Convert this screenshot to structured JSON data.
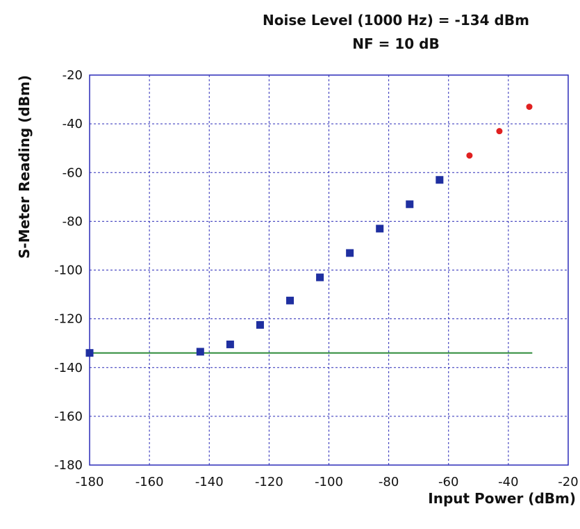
{
  "chart_data": {
    "type": "scatter",
    "title_lines": [
      "Noise Level (1000 Hz) = -134 dBm",
      "NF = 10 dB"
    ],
    "xlabel": "Input Power (dBm)",
    "ylabel": "S-Meter Reading (dBm)",
    "xlim": [
      -180,
      -20
    ],
    "ylim": [
      -180,
      -20
    ],
    "xticks": [
      -180,
      -160,
      -140,
      -120,
      -100,
      -80,
      -60,
      -40,
      -20
    ],
    "yticks": [
      -20,
      -40,
      -60,
      -80,
      -100,
      -120,
      -140,
      -160,
      -180
    ],
    "grid": true,
    "series": [
      {
        "marker": "square",
        "color": "#1f2fa0",
        "points": [
          [
            -180,
            -134
          ],
          [
            -143,
            -133.5
          ],
          [
            -133,
            -130.5
          ],
          [
            -123,
            -122.5
          ],
          [
            -113,
            -112.5
          ],
          [
            -103,
            -103
          ],
          [
            -93,
            -93
          ],
          [
            -83,
            -83
          ],
          [
            -73,
            -73
          ],
          [
            -63,
            -63
          ]
        ]
      },
      {
        "marker": "circle",
        "color": "#e02020",
        "points": [
          [
            -53,
            -53
          ],
          [
            -43,
            -43
          ],
          [
            -33,
            -33
          ]
        ]
      }
    ],
    "reference_line": {
      "y": -134,
      "x_from": -180,
      "x_to": -32,
      "color": "#2e8b3a"
    }
  }
}
